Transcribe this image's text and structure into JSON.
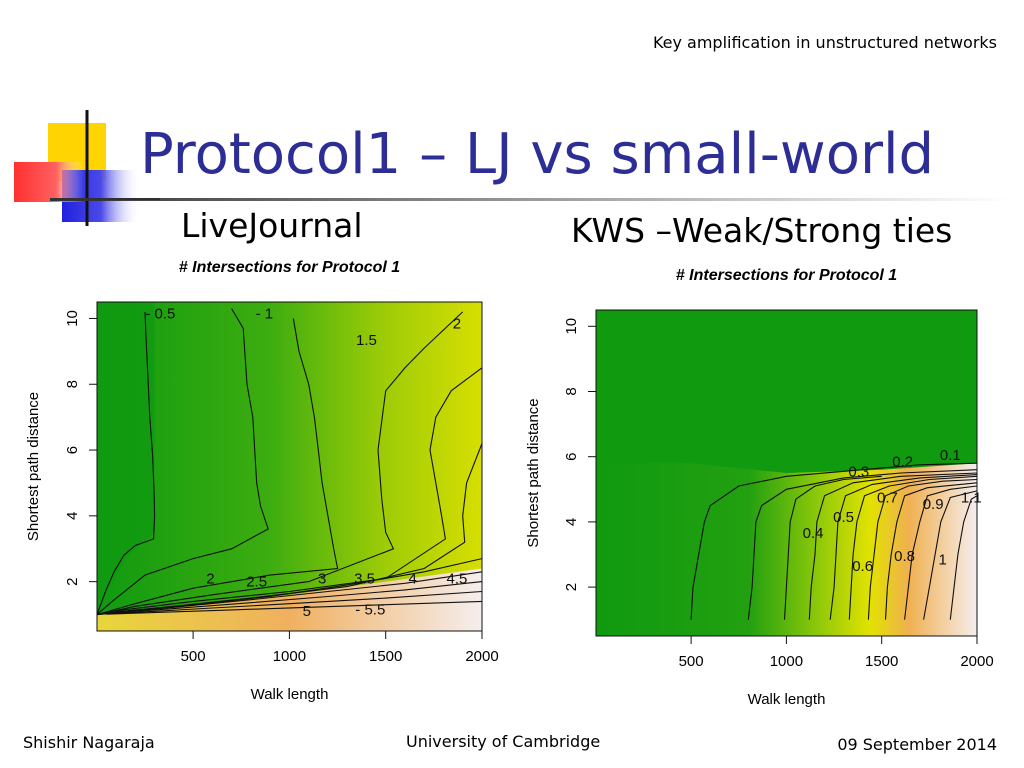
{
  "header": {
    "running_title": "Key amplification in unstructured networks"
  },
  "slide": {
    "title": "Protocol1 – LJ vs small-world"
  },
  "footer": {
    "author": "Shishir Nagaraja",
    "institution": "University of Cambridge",
    "date": "09 September 2014"
  },
  "colors": {
    "title": "#2d2d96",
    "logo_yellow": "#ffd400",
    "logo_red": "#ff3030",
    "logo_blue": "#2020e0",
    "plot_low": "#109a10",
    "plot_mid": "#e2e200",
    "plot_high": "#f5eeee"
  },
  "chart_data": [
    {
      "type": "heatmap",
      "panel_label": "LiveJournal",
      "title": "# Intersections for Protocol 1",
      "xlabel": "Walk length",
      "ylabel": "Shortest path distance",
      "xlim": [
        1,
        2000
      ],
      "ylim": [
        0.5,
        10.5
      ],
      "xticks": [
        "500",
        "1000",
        "1500",
        "2000"
      ],
      "yticks": [
        "2",
        "4",
        "6",
        "8",
        "10"
      ],
      "contours": [
        {
          "level": "0.5",
          "path": [
            [
              250,
              10.2
            ],
            [
              255,
              9.5
            ],
            [
              265,
              8.3
            ],
            [
              275,
              7.0
            ],
            [
              290,
              5.8
            ],
            [
              298,
              4.6
            ],
            [
              300,
              4.0
            ],
            [
              295,
              3.3
            ],
            [
              200,
              3.1
            ],
            [
              140,
              2.8
            ],
            [
              90,
              2.3
            ],
            [
              45,
              1.7
            ],
            [
              1,
              1.0
            ]
          ]
        },
        {
          "level": "1",
          "path": [
            [
              700,
              10.3
            ],
            [
              760,
              9.7
            ],
            [
              780,
              8.0
            ],
            [
              810,
              7.0
            ],
            [
              820,
              6.0
            ],
            [
              830,
              5.0
            ],
            [
              850,
              4.3
            ],
            [
              890,
              3.6
            ],
            [
              700,
              3.0
            ],
            [
              500,
              2.7
            ],
            [
              250,
              2.2
            ],
            [
              80,
              1.4
            ],
            [
              1,
              1.0
            ]
          ]
        },
        {
          "level": "1.5",
          "path": [
            [
              1020,
              10.0
            ],
            [
              1050,
              9.0
            ],
            [
              1100,
              8.0
            ],
            [
              1130,
              7.0
            ],
            [
              1150,
              6.0
            ],
            [
              1170,
              5.0
            ],
            [
              1200,
              4.0
            ],
            [
              1230,
              3.0
            ],
            [
              1250,
              2.4
            ],
            [
              900,
              2.2
            ],
            [
              500,
              1.8
            ],
            [
              180,
              1.3
            ],
            [
              1,
              1.0
            ]
          ]
        },
        {
          "level": "2",
          "path": [
            [
              1900,
              10.2
            ],
            [
              1700,
              9.1
            ],
            [
              1600,
              8.5
            ],
            [
              1500,
              7.8
            ],
            [
              1460,
              6.0
            ],
            [
              1480,
              4.5
            ],
            [
              1500,
              3.5
            ],
            [
              1540,
              3.0
            ],
            [
              1100,
              2.0
            ],
            [
              600,
              1.6
            ],
            [
              200,
              1.25
            ],
            [
              1,
              1.0
            ]
          ]
        },
        {
          "level": "2.5",
          "path": [
            [
              2000,
              8.5
            ],
            [
              1840,
              7.8
            ],
            [
              1760,
              7.0
            ],
            [
              1730,
              6.0
            ],
            [
              1760,
              5.0
            ],
            [
              1790,
              4.0
            ],
            [
              1810,
              3.3
            ],
            [
              1500,
              2.1
            ],
            [
              1000,
              1.7
            ],
            [
              500,
              1.4
            ],
            [
              150,
              1.15
            ],
            [
              1,
              1.0
            ]
          ]
        },
        {
          "level": "3",
          "path": [
            [
              2000,
              6.2
            ],
            [
              1920,
              5.0
            ],
            [
              1900,
              4.0
            ],
            [
              1910,
              3.2
            ],
            [
              1700,
              2.4
            ],
            [
              1300,
              1.85
            ],
            [
              800,
              1.5
            ],
            [
              400,
              1.25
            ],
            [
              100,
              1.08
            ],
            [
              1,
              1.0
            ]
          ]
        },
        {
          "level": "3.5",
          "path": [
            [
              2000,
              2.7
            ],
            [
              1700,
              2.3
            ],
            [
              1300,
              1.9
            ],
            [
              900,
              1.55
            ],
            [
              500,
              1.3
            ],
            [
              150,
              1.1
            ],
            [
              1,
              1.0
            ]
          ]
        },
        {
          "level": "4",
          "path": [
            [
              2000,
              2.3
            ],
            [
              1600,
              1.95
            ],
            [
              1200,
              1.7
            ],
            [
              800,
              1.45
            ],
            [
              400,
              1.22
            ],
            [
              100,
              1.06
            ],
            [
              1,
              1.0
            ]
          ]
        },
        {
          "level": "4.5",
          "path": [
            [
              2000,
              2.0
            ],
            [
              1600,
              1.75
            ],
            [
              1200,
              1.55
            ],
            [
              800,
              1.36
            ],
            [
              400,
              1.18
            ],
            [
              100,
              1.05
            ],
            [
              1,
              1.0
            ]
          ]
        },
        {
          "level": "5",
          "path": [
            [
              2000,
              1.7
            ],
            [
              1500,
              1.5
            ],
            [
              1000,
              1.33
            ],
            [
              600,
              1.2
            ],
            [
              300,
              1.1
            ],
            [
              50,
              1.02
            ]
          ]
        },
        {
          "level": "5.5",
          "path": [
            [
              2000,
              1.4
            ],
            [
              1500,
              1.3
            ],
            [
              1100,
              1.22
            ],
            [
              700,
              1.14
            ],
            [
              350,
              1.07
            ],
            [
              50,
              1.01
            ]
          ]
        }
      ],
      "contour_labels": [
        {
          "text": "- 0.5",
          "x": 330,
          "y": 10.0
        },
        {
          "text": "- 1",
          "x": 870,
          "y": 10.0
        },
        {
          "text": "1.5",
          "x": 1400,
          "y": 9.2
        },
        {
          "text": "2",
          "x": 1870,
          "y": 9.7
        },
        {
          "text": "2",
          "x": 590,
          "y": 1.95
        },
        {
          "text": "2.5",
          "x": 830,
          "y": 1.85
        },
        {
          "text": "3",
          "x": 1170,
          "y": 1.95
        },
        {
          "text": "3.5",
          "x": 1390,
          "y": 1.95
        },
        {
          "text": "4",
          "x": 1640,
          "y": 1.95
        },
        {
          "text": "4.5",
          "x": 1870,
          "y": 1.95
        },
        {
          "text": "5",
          "x": 1090,
          "y": 0.95
        },
        {
          "text": "- 5.5",
          "x": 1420,
          "y": 1.0
        }
      ]
    },
    {
      "type": "heatmap",
      "panel_label": "KWS –Weak/Strong ties",
      "title": "# Intersections for Protocol 1",
      "xlabel": "Walk length",
      "ylabel": "Shortest path distance",
      "xlim": [
        1,
        2000
      ],
      "ylim": [
        0.5,
        10.5
      ],
      "xticks": [
        "500",
        "1000",
        "1500",
        "2000"
      ],
      "yticks": [
        "2",
        "4",
        "6",
        "8",
        "10"
      ],
      "contours": [
        {
          "level": "0.1",
          "path": [
            [
              500,
              1.0
            ],
            [
              510,
              2.0
            ],
            [
              540,
              3.0
            ],
            [
              570,
              4.0
            ],
            [
              600,
              4.5
            ],
            [
              750,
              5.1
            ],
            [
              1000,
              5.4
            ],
            [
              1400,
              5.6
            ],
            [
              1700,
              5.75
            ],
            [
              2000,
              5.8
            ]
          ]
        },
        {
          "level": "0.2",
          "path": [
            [
              800,
              1.0
            ],
            [
              820,
              2.0
            ],
            [
              830,
              3.0
            ],
            [
              840,
              4.0
            ],
            [
              870,
              4.5
            ],
            [
              1000,
              5.0
            ],
            [
              1300,
              5.35
            ],
            [
              1600,
              5.5
            ],
            [
              2000,
              5.6
            ]
          ]
        },
        {
          "level": "0.3",
          "path": [
            [
              990,
              1.0
            ],
            [
              1000,
              2.0
            ],
            [
              1010,
              3.0
            ],
            [
              1020,
              4.0
            ],
            [
              1050,
              4.7
            ],
            [
              1150,
              5.1
            ],
            [
              1300,
              5.3
            ],
            [
              1500,
              5.4
            ]
          ]
        },
        {
          "level": "0.4",
          "path": [
            [
              1120,
              1.0
            ],
            [
              1130,
              2.0
            ],
            [
              1150,
              3.0
            ],
            [
              1160,
              4.0
            ],
            [
              1200,
              4.8
            ],
            [
              1350,
              5.2
            ],
            [
              1600,
              5.4
            ],
            [
              2000,
              5.5
            ]
          ]
        },
        {
          "level": "0.5",
          "path": [
            [
              1230,
              1.0
            ],
            [
              1250,
              2.0
            ],
            [
              1260,
              3.0
            ],
            [
              1270,
              4.0
            ],
            [
              1310,
              4.8
            ],
            [
              1450,
              5.15
            ],
            [
              1700,
              5.35
            ],
            [
              2000,
              5.45
            ]
          ]
        },
        {
          "level": "0.6",
          "path": [
            [
              1330,
              1.0
            ],
            [
              1340,
              2.0
            ],
            [
              1350,
              3.0
            ],
            [
              1370,
              4.0
            ],
            [
              1410,
              4.8
            ],
            [
              1540,
              5.1
            ],
            [
              1750,
              5.3
            ],
            [
              2000,
              5.4
            ]
          ]
        },
        {
          "level": "0.7",
          "path": [
            [
              1430,
              1.0
            ],
            [
              1440,
              2.0
            ],
            [
              1460,
              3.0
            ],
            [
              1480,
              4.0
            ],
            [
              1520,
              4.8
            ],
            [
              1640,
              5.1
            ],
            [
              1820,
              5.25
            ],
            [
              2000,
              5.3
            ]
          ]
        },
        {
          "level": "0.8",
          "path": [
            [
              1520,
              1.0
            ],
            [
              1530,
              2.0
            ],
            [
              1550,
              3.0
            ],
            [
              1580,
              4.0
            ],
            [
              1620,
              4.8
            ],
            [
              1740,
              5.05
            ],
            [
              2000,
              5.2
            ]
          ]
        },
        {
          "level": "0.9",
          "path": [
            [
              1620,
              1.0
            ],
            [
              1640,
              2.0
            ],
            [
              1660,
              3.0
            ],
            [
              1700,
              4.0
            ],
            [
              1740,
              4.8
            ],
            [
              1860,
              5.0
            ],
            [
              2000,
              5.1
            ]
          ]
        },
        {
          "level": "1",
          "path": [
            [
              1720,
              1.0
            ],
            [
              1750,
              2.0
            ],
            [
              1780,
              3.0
            ],
            [
              1810,
              4.0
            ],
            [
              1860,
              4.75
            ],
            [
              2000,
              4.95
            ]
          ]
        },
        {
          "level": "1.1",
          "path": [
            [
              1860,
              1.0
            ],
            [
              1880,
              2.0
            ],
            [
              1900,
              3.0
            ],
            [
              1930,
              4.0
            ],
            [
              1970,
              4.7
            ],
            [
              2000,
              4.8
            ]
          ]
        }
      ],
      "contour_labels": [
        {
          "text": "0.1",
          "x": 1860,
          "y": 5.9
        },
        {
          "text": "0.2",
          "x": 1610,
          "y": 5.7
        },
        {
          "text": "0.3",
          "x": 1380,
          "y": 5.4
        },
        {
          "text": "0.4",
          "x": 1140,
          "y": 3.5
        },
        {
          "text": "0.5",
          "x": 1300,
          "y": 4.0
        },
        {
          "text": "0.6",
          "x": 1400,
          "y": 2.5
        },
        {
          "text": "0.7",
          "x": 1530,
          "y": 4.6
        },
        {
          "text": "0.8",
          "x": 1620,
          "y": 2.8
        },
        {
          "text": "0.9",
          "x": 1770,
          "y": 4.4
        },
        {
          "text": "1",
          "x": 1820,
          "y": 2.7
        },
        {
          "text": "1.1",
          "x": 1970,
          "y": 4.6
        }
      ]
    }
  ]
}
